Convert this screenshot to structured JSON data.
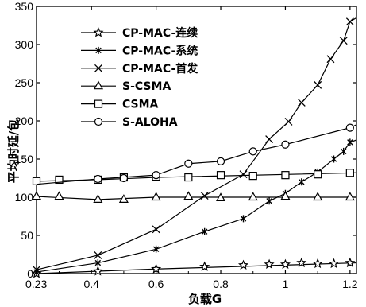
{
  "chart_data": {
    "type": "line",
    "xlabel": "负载G",
    "ylabel": "平均时延/包",
    "xlim": [
      0.23,
      1.22
    ],
    "ylim": [
      0,
      350
    ],
    "x_ticks": [
      {
        "value": 0.23,
        "label": "0.23"
      },
      {
        "value": 0.4,
        "label": "0.4"
      },
      {
        "value": 0.6,
        "label": "0.6"
      },
      {
        "value": 0.8,
        "label": "0.8"
      },
      {
        "value": 1.0,
        "label": "1"
      },
      {
        "value": 1.2,
        "label": "1.2"
      }
    ],
    "y_ticks": [
      {
        "value": 0,
        "label": "0"
      },
      {
        "value": 50,
        "label": "50"
      },
      {
        "value": 100,
        "label": "100"
      },
      {
        "value": 150,
        "label": "150"
      },
      {
        "value": 200,
        "label": "200"
      },
      {
        "value": 250,
        "label": "250"
      },
      {
        "value": 300,
        "label": "300"
      },
      {
        "value": 350,
        "label": "350"
      }
    ],
    "grid": false,
    "legend_position": "top-left",
    "series": [
      {
        "name": "CP-MAC-连续",
        "marker": "star",
        "line": [
          [
            0.23,
            0
          ],
          [
            0.6,
            6
          ],
          [
            1.22,
            14
          ]
        ],
        "points": [
          [
            0.23,
            0
          ],
          [
            0.42,
            3
          ],
          [
            0.6,
            6
          ],
          [
            0.75,
            9
          ],
          [
            0.87,
            11
          ],
          [
            0.95,
            12
          ],
          [
            1.0,
            12
          ],
          [
            1.05,
            14
          ],
          [
            1.1,
            13
          ],
          [
            1.15,
            13
          ],
          [
            1.2,
            14
          ]
        ]
      },
      {
        "name": "CP-MAC-系统",
        "marker": "asterisk",
        "line": [
          [
            0.23,
            2
          ],
          [
            0.42,
            14
          ],
          [
            0.6,
            32
          ],
          [
            0.75,
            55
          ],
          [
            0.87,
            72
          ],
          [
            0.95,
            95
          ],
          [
            1.0,
            105
          ],
          [
            1.05,
            120
          ],
          [
            1.1,
            133
          ],
          [
            1.15,
            150
          ],
          [
            1.18,
            160
          ],
          [
            1.2,
            172
          ],
          [
            1.22,
            175
          ]
        ],
        "points": [
          [
            0.23,
            2
          ],
          [
            0.42,
            14
          ],
          [
            0.6,
            32
          ],
          [
            0.75,
            55
          ],
          [
            0.87,
            72
          ],
          [
            0.95,
            95
          ],
          [
            1.0,
            105
          ],
          [
            1.05,
            120
          ],
          [
            1.1,
            133
          ],
          [
            1.15,
            150
          ],
          [
            1.18,
            160
          ],
          [
            1.2,
            172
          ]
        ]
      },
      {
        "name": "CP-MAC-首发",
        "marker": "x",
        "line": [
          [
            0.23,
            5
          ],
          [
            0.42,
            24
          ],
          [
            0.6,
            58
          ],
          [
            0.75,
            102
          ],
          [
            0.87,
            130
          ],
          [
            0.95,
            176
          ],
          [
            1.01,
            199
          ],
          [
            1.05,
            224
          ],
          [
            1.1,
            247
          ],
          [
            1.14,
            281
          ],
          [
            1.18,
            305
          ],
          [
            1.2,
            330
          ],
          [
            1.22,
            335
          ]
        ],
        "points": [
          [
            0.23,
            5
          ],
          [
            0.42,
            24
          ],
          [
            0.6,
            58
          ],
          [
            0.75,
            102
          ],
          [
            0.87,
            130
          ],
          [
            0.95,
            176
          ],
          [
            1.01,
            199
          ],
          [
            1.05,
            224
          ],
          [
            1.1,
            247
          ],
          [
            1.14,
            281
          ],
          [
            1.18,
            305
          ],
          [
            1.2,
            330
          ]
        ]
      },
      {
        "name": "S-CSMA",
        "marker": "triangle",
        "line": [
          [
            0.23,
            101
          ],
          [
            0.42,
            97
          ],
          [
            0.6,
            100
          ],
          [
            1.22,
            100
          ]
        ],
        "points": [
          [
            0.23,
            101
          ],
          [
            0.3,
            101
          ],
          [
            0.42,
            97
          ],
          [
            0.5,
            97
          ],
          [
            0.6,
            100
          ],
          [
            0.7,
            101
          ],
          [
            0.8,
            99
          ],
          [
            0.9,
            100
          ],
          [
            1.0,
            101
          ],
          [
            1.1,
            100
          ],
          [
            1.2,
            100
          ]
        ]
      },
      {
        "name": "CSMA",
        "marker": "square",
        "line": [
          [
            0.23,
            121
          ],
          [
            0.42,
            123
          ],
          [
            0.6,
            126
          ],
          [
            1.22,
            132
          ]
        ],
        "points": [
          [
            0.23,
            121
          ],
          [
            0.3,
            123
          ],
          [
            0.42,
            123
          ],
          [
            0.5,
            126
          ],
          [
            0.6,
            127
          ],
          [
            0.7,
            126
          ],
          [
            0.8,
            129
          ],
          [
            0.9,
            128
          ],
          [
            1.0,
            129
          ],
          [
            1.1,
            130
          ],
          [
            1.2,
            132
          ]
        ]
      },
      {
        "name": "S-ALOHA",
        "marker": "circle",
        "line": [
          [
            0.23,
            117
          ],
          [
            0.42,
            124
          ],
          [
            0.6,
            129
          ],
          [
            0.7,
            144
          ],
          [
            0.8,
            147
          ],
          [
            0.9,
            160
          ],
          [
            1.0,
            169
          ],
          [
            1.2,
            191
          ],
          [
            1.22,
            195
          ]
        ],
        "points": [
          [
            0.42,
            124
          ],
          [
            0.5,
            125
          ],
          [
            0.6,
            129
          ],
          [
            0.7,
            144
          ],
          [
            0.8,
            147
          ],
          [
            0.9,
            160
          ],
          [
            1.0,
            169
          ],
          [
            1.2,
            191
          ]
        ]
      }
    ]
  }
}
